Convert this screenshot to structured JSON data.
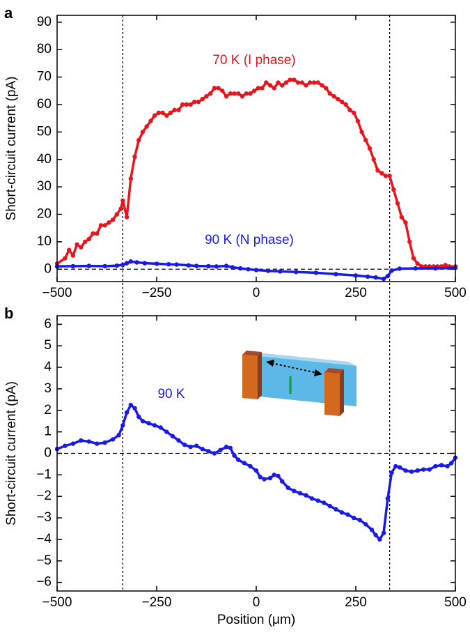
{
  "chart_data": [
    {
      "type": "line",
      "panel_label": "a",
      "y_label": "Short-circuit current (pA)",
      "xlim": [
        -500,
        500
      ],
      "ylim": [
        -4.5,
        92.5
      ],
      "xticks": [
        {
          "value": -500,
          "label": "−500"
        },
        {
          "value": -250,
          "label": "−250"
        },
        0,
        250,
        500
      ],
      "yticks": [
        0,
        10,
        20,
        30,
        40,
        50,
        60,
        70,
        80,
        90
      ],
      "vlines": [
        -335,
        335
      ],
      "hline": 0,
      "annotations": [
        {
          "text": "70 K (I phase)",
          "color": "#e8141e"
        },
        {
          "text": "90 K (N phase)",
          "color": "#1a1ae6"
        }
      ],
      "series": [
        {
          "color": "#e8141e",
          "x": [
            -500,
            -480,
            -470,
            -460,
            -450,
            -440,
            -430,
            -420,
            -410,
            -400,
            -390,
            -380,
            -370,
            -360,
            -350,
            -340,
            -335,
            -325,
            -315,
            -305,
            -295,
            -285,
            -275,
            -265,
            -255,
            -245,
            -235,
            -225,
            -215,
            -205,
            -195,
            -185,
            -175,
            -165,
            -155,
            -145,
            -135,
            -125,
            -115,
            -105,
            -95,
            -85,
            -75,
            -65,
            -55,
            -45,
            -35,
            -25,
            -15,
            -5,
            5,
            15,
            25,
            35,
            45,
            55,
            65,
            75,
            85,
            95,
            105,
            115,
            125,
            135,
            145,
            155,
            165,
            175,
            185,
            195,
            205,
            215,
            225,
            235,
            245,
            255,
            265,
            275,
            285,
            295,
            305,
            315,
            325,
            335,
            345,
            355,
            365,
            375,
            385,
            395,
            405,
            415,
            425,
            435,
            445,
            455,
            465,
            475,
            485,
            500
          ],
          "values": [
            2,
            4,
            7,
            5,
            9,
            8,
            10,
            11,
            13,
            13,
            16,
            16,
            17,
            18,
            20,
            22,
            25,
            19,
            33,
            41,
            47,
            50,
            52,
            54,
            56,
            57,
            57,
            56,
            57,
            58,
            58,
            60,
            60,
            60,
            61,
            61,
            62,
            63,
            64,
            66,
            66,
            65,
            63,
            64,
            64,
            64,
            63,
            64,
            64,
            65,
            66,
            66,
            68,
            67,
            66,
            68,
            67,
            68,
            69,
            69,
            68,
            68,
            67,
            68,
            68,
            68,
            67,
            66,
            64,
            63,
            62,
            61,
            60,
            58,
            57,
            54,
            50,
            47,
            44,
            40,
            36,
            35,
            34,
            34,
            29,
            24,
            19,
            17,
            10,
            4,
            2,
            1,
            1,
            1,
            1,
            1,
            1,
            1.5,
            1,
            1
          ]
        },
        {
          "color": "#1a1ae6",
          "x": [
            -500,
            -460,
            -420,
            -380,
            -350,
            -335,
            -325,
            -315,
            -300,
            -280,
            -250,
            -220,
            -200,
            -170,
            -150,
            -120,
            -100,
            -75,
            -60,
            -40,
            -20,
            0,
            30,
            60,
            100,
            150,
            200,
            250,
            280,
            300,
            320,
            330,
            340,
            360,
            400,
            450,
            500
          ],
          "values": [
            1,
            1.1,
            1.2,
            1.1,
            1.3,
            1.6,
            2.2,
            2.8,
            2.5,
            2.2,
            2,
            1.8,
            1.7,
            1.4,
            1.2,
            1.1,
            1,
            1.2,
            0.7,
            0.3,
            0,
            -0.3,
            -0.6,
            -0.8,
            -1,
            -1.3,
            -1.8,
            -2.3,
            -2.7,
            -3,
            -3.5,
            -2.5,
            -0.5,
            0.2,
            0.3,
            0.3,
            0.5
          ]
        }
      ]
    },
    {
      "type": "line",
      "panel_label": "b",
      "y_label": "Short-circuit current (pA)",
      "x_label": "Position (μm)",
      "xlim": [
        -500,
        500
      ],
      "ylim": [
        -6.4,
        6.4
      ],
      "xticks": [
        {
          "value": -500,
          "label": "−500"
        },
        {
          "value": -250,
          "label": "−250"
        },
        0,
        250,
        500
      ],
      "yticks": [
        {
          "value": -6,
          "label": "−6"
        },
        {
          "value": -5,
          "label": "−5"
        },
        {
          "value": -4,
          "label": "−4"
        },
        {
          "value": -3,
          "label": "−3"
        },
        {
          "value": -2,
          "label": "−2"
        },
        {
          "value": -1,
          "label": "−1"
        },
        0,
        1,
        2,
        3,
        4,
        5,
        6
      ],
      "vlines": [
        -335,
        335
      ],
      "hline": 0,
      "annotations": [
        {
          "text": "90 K",
          "color": "#1a1ae6"
        }
      ],
      "series": [
        {
          "color": "#1a1ae6",
          "x": [
            -500,
            -480,
            -460,
            -440,
            -420,
            -400,
            -380,
            -360,
            -345,
            -335,
            -325,
            -315,
            -305,
            -295,
            -285,
            -270,
            -255,
            -240,
            -225,
            -210,
            -195,
            -180,
            -165,
            -150,
            -135,
            -120,
            -105,
            -90,
            -75,
            -65,
            -55,
            -45,
            -30,
            -15,
            0,
            10,
            20,
            35,
            45,
            55,
            65,
            80,
            95,
            110,
            125,
            140,
            155,
            170,
            185,
            200,
            215,
            230,
            245,
            260,
            275,
            290,
            300,
            310,
            320,
            330,
            340,
            350,
            360,
            375,
            390,
            405,
            420,
            435,
            450,
            465,
            480,
            490,
            500
          ],
          "values": [
            0.2,
            0.35,
            0.45,
            0.6,
            0.55,
            0.45,
            0.5,
            0.65,
            0.85,
            1.3,
            1.9,
            2.25,
            2.1,
            1.7,
            1.5,
            1.4,
            1.3,
            1.2,
            1,
            0.8,
            0.6,
            0.4,
            0.3,
            0.35,
            0.2,
            0.1,
            0,
            0.15,
            0.3,
            0.25,
            -0.1,
            -0.3,
            -0.45,
            -0.6,
            -0.8,
            -1.1,
            -1.2,
            -1.15,
            -1,
            -1.05,
            -1.3,
            -1.6,
            -1.75,
            -1.85,
            -1.95,
            -2.1,
            -2.2,
            -2.3,
            -2.45,
            -2.6,
            -2.75,
            -2.85,
            -3,
            -3.1,
            -3.3,
            -3.55,
            -3.8,
            -4,
            -3.7,
            -2.1,
            -0.9,
            -0.6,
            -0.65,
            -0.8,
            -0.85,
            -0.8,
            -0.75,
            -0.75,
            -0.6,
            -0.55,
            -0.6,
            -0.45,
            -0.2
          ]
        }
      ]
    }
  ]
}
